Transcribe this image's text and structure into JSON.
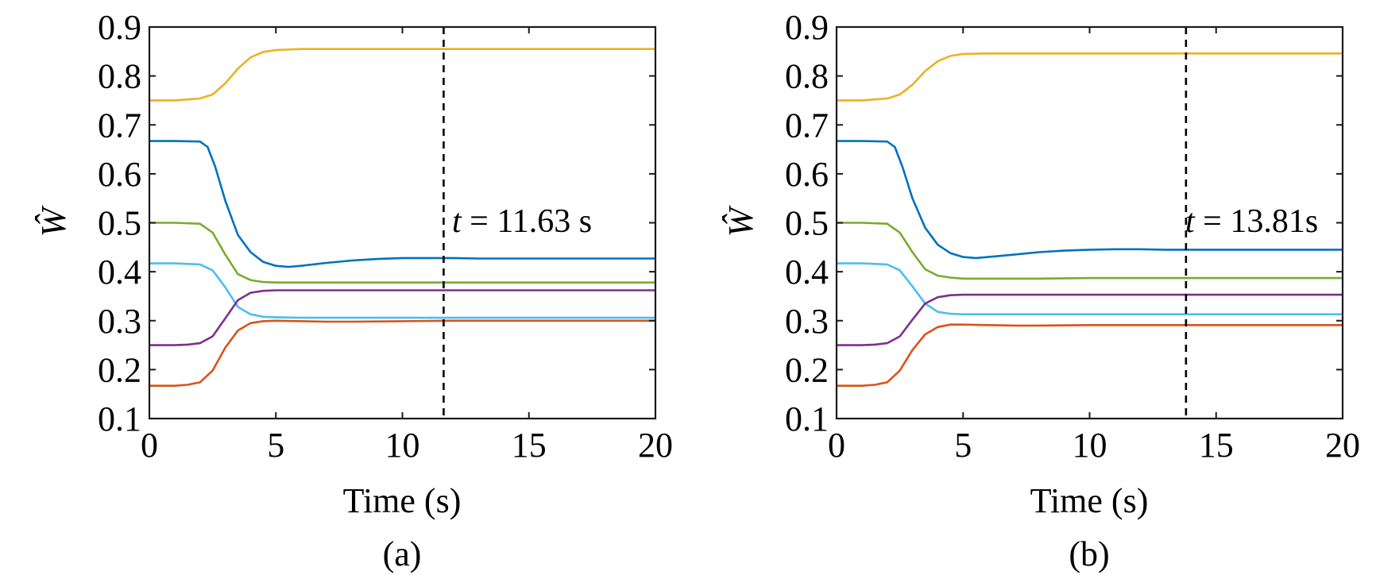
{
  "chart_data": [
    {
      "type": "line",
      "panel_label": "(a)",
      "xlabel": "Time (s)",
      "ylabel": "Ŵ",
      "xlim": [
        0,
        20
      ],
      "ylim": [
        0.1,
        0.9
      ],
      "xticks": [
        "0",
        "5",
        "10",
        "15",
        "20"
      ],
      "yticks": [
        "0.1",
        "0.2",
        "0.3",
        "0.4",
        "0.5",
        "0.6",
        "0.7",
        "0.8",
        "0.9"
      ],
      "vline_x": 11.63,
      "annotation": {
        "italic": "t",
        "text": " = 11.63 s"
      },
      "series": [
        {
          "color": "#EDB120",
          "x": [
            0,
            1,
            1.5,
            2,
            2.5,
            3,
            3.5,
            4,
            4.5,
            5,
            6,
            8,
            10,
            12,
            15,
            20
          ],
          "y": [
            0.75,
            0.75,
            0.752,
            0.754,
            0.762,
            0.785,
            0.815,
            0.838,
            0.849,
            0.853,
            0.855,
            0.855,
            0.855,
            0.855,
            0.855,
            0.855
          ]
        },
        {
          "color": "#0072BD",
          "x": [
            0,
            1,
            2,
            2.3,
            2.6,
            3,
            3.5,
            4,
            4.5,
            5,
            5.5,
            6,
            7,
            8,
            9,
            10,
            11,
            12,
            13,
            15,
            20
          ],
          "y": [
            0.667,
            0.667,
            0.666,
            0.655,
            0.615,
            0.545,
            0.475,
            0.44,
            0.42,
            0.412,
            0.41,
            0.412,
            0.418,
            0.423,
            0.426,
            0.428,
            0.428,
            0.428,
            0.427,
            0.427,
            0.427
          ]
        },
        {
          "color": "#77AC30",
          "x": [
            0,
            1,
            2,
            2.5,
            3,
            3.5,
            4,
            4.5,
            5,
            6,
            8,
            10,
            12,
            15,
            20
          ],
          "y": [
            0.5,
            0.5,
            0.498,
            0.48,
            0.435,
            0.395,
            0.383,
            0.379,
            0.378,
            0.378,
            0.378,
            0.378,
            0.378,
            0.378,
            0.378
          ]
        },
        {
          "color": "#4DBEEE",
          "x": [
            0,
            1,
            2,
            2.5,
            3,
            3.5,
            4,
            4.5,
            5,
            6,
            8,
            10,
            12,
            15,
            20
          ],
          "y": [
            0.417,
            0.417,
            0.415,
            0.403,
            0.368,
            0.328,
            0.313,
            0.308,
            0.307,
            0.306,
            0.306,
            0.306,
            0.306,
            0.306,
            0.306
          ]
        },
        {
          "color": "#7E2F8E",
          "x": [
            0,
            1,
            1.5,
            2,
            2.5,
            3,
            3.5,
            4,
            4.5,
            5,
            6,
            8,
            10,
            12,
            15,
            20
          ],
          "y": [
            0.25,
            0.25,
            0.251,
            0.254,
            0.268,
            0.305,
            0.342,
            0.357,
            0.361,
            0.362,
            0.362,
            0.362,
            0.362,
            0.362,
            0.362,
            0.362
          ]
        },
        {
          "color": "#D95319",
          "x": [
            0,
            1,
            1.5,
            2,
            2.5,
            3,
            3.5,
            4,
            4.5,
            5,
            6,
            7,
            8,
            10,
            12,
            15,
            20
          ],
          "y": [
            0.167,
            0.167,
            0.169,
            0.174,
            0.198,
            0.245,
            0.28,
            0.295,
            0.299,
            0.3,
            0.299,
            0.298,
            0.298,
            0.299,
            0.3,
            0.3,
            0.3
          ]
        }
      ]
    },
    {
      "type": "line",
      "panel_label": "(b)",
      "xlabel": "Time (s)",
      "ylabel": "Ŵ",
      "xlim": [
        0,
        20
      ],
      "ylim": [
        0.1,
        0.9
      ],
      "xticks": [
        "0",
        "5",
        "10",
        "15",
        "20"
      ],
      "yticks": [
        "0.1",
        "0.2",
        "0.3",
        "0.4",
        "0.5",
        "0.6",
        "0.7",
        "0.8",
        "0.9"
      ],
      "vline_x": 13.81,
      "annotation": {
        "italic": "t",
        "text": " = 13.81s"
      },
      "series": [
        {
          "color": "#EDB120",
          "x": [
            0,
            1,
            1.5,
            2,
            2.5,
            3,
            3.5,
            4,
            4.5,
            5,
            6,
            8,
            10,
            12,
            15,
            20
          ],
          "y": [
            0.75,
            0.75,
            0.752,
            0.754,
            0.762,
            0.782,
            0.81,
            0.83,
            0.841,
            0.845,
            0.846,
            0.846,
            0.846,
            0.846,
            0.846,
            0.846
          ]
        },
        {
          "color": "#0072BD",
          "x": [
            0,
            1,
            2,
            2.3,
            2.6,
            3,
            3.5,
            4,
            4.5,
            5,
            5.5,
            6,
            7,
            8,
            9,
            10,
            11,
            12,
            13,
            15,
            20
          ],
          "y": [
            0.667,
            0.667,
            0.666,
            0.655,
            0.615,
            0.55,
            0.49,
            0.455,
            0.438,
            0.43,
            0.428,
            0.43,
            0.435,
            0.44,
            0.443,
            0.445,
            0.446,
            0.446,
            0.445,
            0.445,
            0.445
          ]
        },
        {
          "color": "#77AC30",
          "x": [
            0,
            1,
            2,
            2.5,
            3,
            3.5,
            4,
            4.5,
            5,
            6,
            8,
            10,
            12,
            15,
            20
          ],
          "y": [
            0.5,
            0.5,
            0.498,
            0.48,
            0.44,
            0.405,
            0.392,
            0.388,
            0.386,
            0.386,
            0.386,
            0.387,
            0.387,
            0.387,
            0.387
          ]
        },
        {
          "color": "#4DBEEE",
          "x": [
            0,
            1,
            2,
            2.5,
            3,
            3.5,
            4,
            4.5,
            5,
            6,
            8,
            10,
            12,
            15,
            20
          ],
          "y": [
            0.417,
            0.417,
            0.415,
            0.403,
            0.37,
            0.335,
            0.318,
            0.314,
            0.313,
            0.313,
            0.313,
            0.313,
            0.313,
            0.313,
            0.313
          ]
        },
        {
          "color": "#7E2F8E",
          "x": [
            0,
            1,
            1.5,
            2,
            2.5,
            3,
            3.5,
            4,
            4.5,
            5,
            6,
            8,
            10,
            12,
            15,
            20
          ],
          "y": [
            0.25,
            0.25,
            0.251,
            0.254,
            0.268,
            0.302,
            0.335,
            0.348,
            0.352,
            0.353,
            0.353,
            0.353,
            0.353,
            0.353,
            0.353,
            0.353
          ]
        },
        {
          "color": "#D95319",
          "x": [
            0,
            1,
            1.5,
            2,
            2.5,
            3,
            3.5,
            4,
            4.5,
            5,
            6,
            7,
            8,
            10,
            12,
            15,
            20
          ],
          "y": [
            0.167,
            0.167,
            0.169,
            0.174,
            0.198,
            0.24,
            0.272,
            0.287,
            0.292,
            0.292,
            0.291,
            0.29,
            0.29,
            0.291,
            0.291,
            0.291,
            0.291
          ]
        }
      ]
    }
  ]
}
